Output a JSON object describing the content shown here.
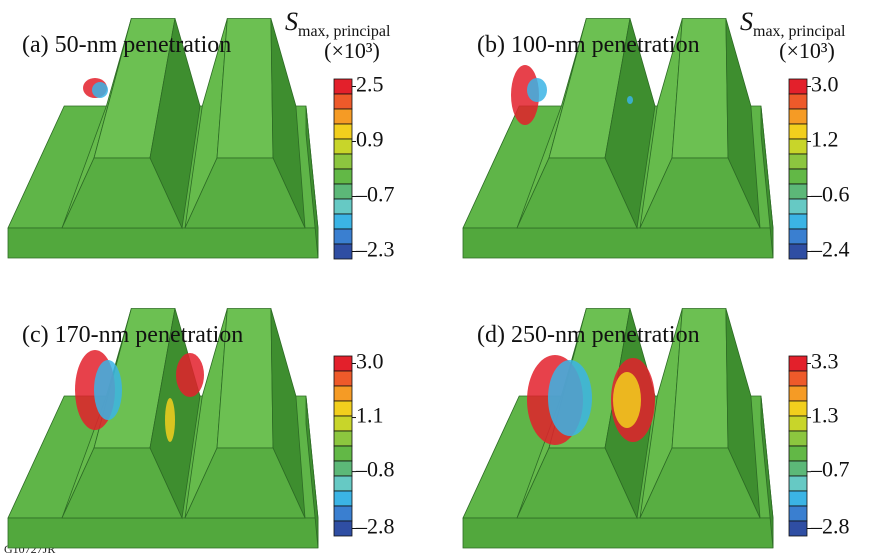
{
  "panels": [
    {
      "label": "(a) 50-nm penetration",
      "colorbar": {
        "symbol": "S",
        "subscript": "max, principal",
        "scale": "(×10³)",
        "ticks": [
          2.5,
          0.9,
          {
            "value": -0.7,
            "label": "–0.7"
          },
          {
            "value": -2.3,
            "label": "–2.3"
          }
        ]
      }
    },
    {
      "label": "(b) 100-nm penetration",
      "colorbar": {
        "symbol": "S",
        "subscript": "max, principal",
        "scale": "(×10³)",
        "ticks": [
          {
            "value": 3.0,
            "label": "3.0"
          },
          1.2,
          {
            "value": -0.6,
            "label": "–0.6"
          },
          {
            "value": -2.4,
            "label": "–2.4"
          }
        ]
      }
    },
    {
      "label": "(c) 170-nm penetration",
      "colorbar": {
        "ticks": [
          {
            "value": 3.0,
            "label": "3.0"
          },
          1.1,
          {
            "value": -0.8,
            "label": "–0.8"
          },
          {
            "value": -2.8,
            "label": "–2.8"
          }
        ]
      }
    },
    {
      "label": "(d) 250-nm penetration",
      "colorbar": {
        "ticks": [
          3.3,
          1.3,
          {
            "value": -0.7,
            "label": "–0.7"
          },
          {
            "value": -2.8,
            "label": "–2.8"
          }
        ]
      }
    }
  ],
  "colors": [
    "#e3202b",
    "#ee5a2a",
    "#f59b25",
    "#f2cf1d",
    "#c8d52a",
    "#8cc63f",
    "#62b846",
    "#5cb878",
    "#66c9c4",
    "#3bb4e5",
    "#3a7fd0",
    "#2f4ea3"
  ],
  "footer": "G10727JR"
}
